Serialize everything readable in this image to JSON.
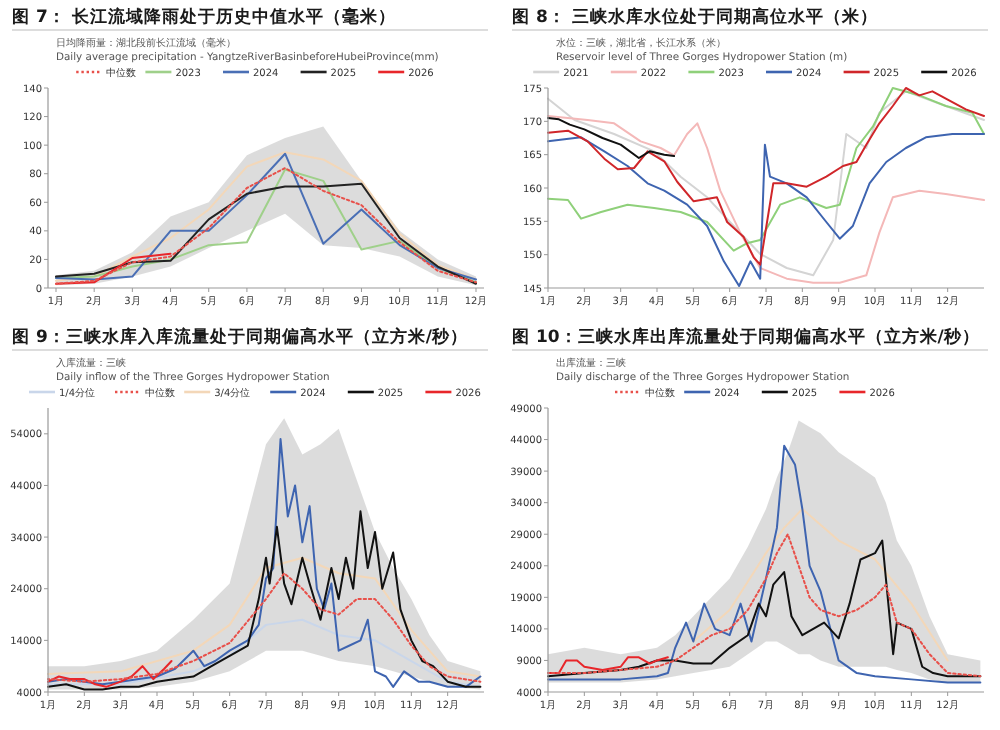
{
  "chart_data": [
    {
      "type": "line",
      "title": "图 7： 长江流域降雨处于历史中值水平（毫米）",
      "subtitle": "日均降雨量：湖北段前长江流域（毫米）\nDaily average precipitation - YangtzeRiverBasinbeforeHubeiProvince(mm)",
      "categories": [
        "1月",
        "2月",
        "3月",
        "4月",
        "5月",
        "6月",
        "7月",
        "8月",
        "9月",
        "10月",
        "11月",
        "12月"
      ],
      "ylim": [
        0,
        140
      ],
      "yticks": [
        0,
        20,
        40,
        60,
        80,
        100,
        120,
        140
      ],
      "legend": "top",
      "series": [
        {
          "name": "中位数",
          "color": "#e8504a",
          "line_style": "dotted",
          "values": [
            3,
            5,
            18,
            22,
            42,
            70,
            84,
            68,
            58,
            32,
            12,
            4
          ],
          "lower": [
            2,
            3,
            8,
            15,
            28,
            40,
            52,
            30,
            28,
            22,
            8,
            2
          ],
          "upper": [
            9,
            12,
            25,
            50,
            60,
            93,
            105,
            113,
            75,
            40,
            20,
            8
          ]
        },
        {
          "color": "#f3d7b8",
          "values": [
            5,
            8,
            22,
            35,
            55,
            85,
            95,
            90,
            75,
            38,
            16,
            6
          ]
        },
        {
          "name": "2023",
          "color": "#9fd08a",
          "values": [
            7,
            8,
            15,
            20,
            30,
            32,
            83,
            75,
            27,
            33,
            14,
            4
          ]
        },
        {
          "name": "2024",
          "color": "#4a6fb5",
          "values": [
            7,
            6,
            8,
            40,
            40,
            65,
            94,
            31,
            55,
            30,
            14,
            6
          ]
        },
        {
          "name": "2025",
          "color": "#222222",
          "values": [
            8,
            10,
            18,
            19,
            48,
            66,
            71,
            71,
            73,
            35,
            15,
            3
          ]
        },
        {
          "name": "2026",
          "color": "#e8262a",
          "values": [
            3,
            4,
            21,
            24,
            null,
            null,
            null,
            null,
            null,
            null,
            null,
            null
          ]
        }
      ]
    },
    {
      "type": "line",
      "title": "图 8： 三峡水库水位处于同期高位水平（米）",
      "subtitle": "水位：三峡，湖北省，长江水系（米）\nReservoir level of Three Gorges Hydropower Station (m)",
      "xlim": [
        1,
        13
      ],
      "xticks": [
        {
          "value": 1,
          "label": "1月"
        },
        {
          "value": 2,
          "label": "2月"
        },
        {
          "value": 3,
          "label": "3月"
        },
        {
          "value": 4,
          "label": "4月"
        },
        {
          "value": 5,
          "label": "5月"
        },
        {
          "value": 6,
          "label": "6月"
        },
        {
          "value": 7,
          "label": "7月"
        },
        {
          "value": 8,
          "label": "8月"
        },
        {
          "value": 9,
          "label": "9月"
        },
        {
          "value": 10,
          "label": "10月"
        },
        {
          "value": 11,
          "label": "11月"
        },
        {
          "value": 12,
          "label": "12月"
        }
      ],
      "ylim": [
        145,
        175
      ],
      "yticks": [
        145,
        150,
        155,
        160,
        165,
        170,
        175
      ],
      "legend": "top",
      "series": [
        {
          "name": "2021",
          "color": "#d4d4d4",
          "x": [
            1,
            1.73,
            2.82,
            3.92,
            4.65,
            5.38,
            6.11,
            6.84,
            7.57,
            8.3,
            8.85,
            9.21,
            9.76,
            10.12,
            10.85,
            11.95,
            13
          ],
          "values": [
            173.4,
            170.2,
            168.1,
            165.5,
            161.7,
            158.6,
            154.3,
            150.1,
            148,
            146.9,
            152.2,
            168.1,
            166,
            171.3,
            174.5,
            172.3,
            170.2
          ]
        },
        {
          "name": "2022",
          "color": "#f4b8b8",
          "x": [
            1,
            2.09,
            2.82,
            3.55,
            4.1,
            4.47,
            4.83,
            5.11,
            5.38,
            5.74,
            6.29,
            6.84,
            7.57,
            8.3,
            9.03,
            9.76,
            10.12,
            10.49,
            11.22,
            11.95,
            13
          ],
          "values": [
            170.8,
            170.2,
            169.7,
            167,
            166,
            164.9,
            168.1,
            169.7,
            166,
            159.6,
            153.3,
            148,
            146.4,
            145.8,
            145.8,
            146.9,
            153.3,
            158.6,
            159.6,
            159.1,
            158.2
          ]
        },
        {
          "name": "2023",
          "color": "#8fd07a",
          "x": [
            1,
            1.55,
            1.91,
            2.46,
            3.19,
            3.92,
            4.65,
            5.38,
            6.11,
            6.47,
            6.84,
            7.39,
            7.93,
            8.66,
            9.03,
            9.49,
            9.94,
            10.49,
            11.22,
            11.95,
            12.68,
            13
          ],
          "values": [
            158.4,
            158.2,
            155.4,
            156.4,
            157.5,
            157,
            156.4,
            154.9,
            150.6,
            151.7,
            152.2,
            157.5,
            158.6,
            157,
            157.5,
            166,
            169.2,
            175,
            173.9,
            172.3,
            171.3,
            168.1
          ]
        },
        {
          "name": "2024",
          "color": "#3e64b0",
          "x": [
            1,
            1.91,
            2.55,
            3.19,
            3.74,
            4.2,
            4.83,
            5.38,
            5.84,
            6.26,
            6.57,
            6.84,
            6.97,
            7.11,
            7.57,
            8.12,
            8.66,
            9.03,
            9.39,
            9.85,
            10.31,
            10.85,
            11.4,
            12.13,
            13
          ],
          "values": [
            167,
            167.6,
            165.5,
            163.3,
            160.7,
            159.6,
            157.5,
            154.3,
            149,
            145.3,
            149,
            146.4,
            166.5,
            161.7,
            160.7,
            158.6,
            154.9,
            152.4,
            154.3,
            160.7,
            163.9,
            166,
            167.6,
            168.1,
            168.1
          ]
        },
        {
          "name": "2025",
          "color": "#d0262a",
          "x": [
            1,
            1.55,
            2.09,
            2.55,
            2.92,
            3.37,
            3.74,
            4.2,
            4.56,
            5.01,
            5.65,
            5.93,
            6.38,
            6.66,
            6.84,
            7.2,
            7.57,
            8.12,
            8.66,
            9.12,
            9.49,
            9.76,
            10.12,
            10.49,
            10.85,
            11.22,
            11.58,
            11.95,
            12.5,
            13
          ],
          "values": [
            168.3,
            168.6,
            167,
            164.4,
            162.8,
            163,
            165.5,
            164,
            160.9,
            158,
            158.6,
            154.9,
            152.7,
            149.6,
            148.5,
            160.7,
            160.7,
            160.2,
            161.7,
            163.3,
            163.9,
            166.5,
            169.7,
            172.3,
            175,
            173.9,
            174.5,
            173.4,
            171.8,
            170.8
          ]
        },
        {
          "name": "2026",
          "color": "#111111",
          "x": [
            1,
            1.3,
            1.6,
            2,
            2.5,
            3,
            3.5,
            3.8,
            4.2,
            4.47
          ],
          "values": [
            170.5,
            170.3,
            169.5,
            168.8,
            167.5,
            166.5,
            164.5,
            165.5,
            165,
            164.8
          ]
        }
      ]
    },
    {
      "type": "line",
      "title": "图 9：三峡水库入库流量处于同期偏高水平（立方米/秒）",
      "subtitle": "入库流量：三峡\nDaily inflow of the Three Gorges Hydropower Station",
      "xlim": [
        1,
        13
      ],
      "xticks": [
        {
          "value": 1,
          "label": "1月"
        },
        {
          "value": 2,
          "label": "2月"
        },
        {
          "value": 3,
          "label": "3月"
        },
        {
          "value": 4,
          "label": "4月"
        },
        {
          "value": 5,
          "label": "5月"
        },
        {
          "value": 6,
          "label": "6月"
        },
        {
          "value": 7,
          "label": "7月"
        },
        {
          "value": 8,
          "label": "8月"
        },
        {
          "value": 9,
          "label": "9月"
        },
        {
          "value": 10,
          "label": "10月"
        },
        {
          "value": 11,
          "label": "11月"
        },
        {
          "value": 12,
          "label": "12月"
        }
      ],
      "ylim": [
        4000,
        59000
      ],
      "yticks": [
        4000,
        14000,
        24000,
        34000,
        44000,
        54000
      ],
      "legend": "top",
      "series": [
        {
          "name": "1/4分位",
          "color": "#c9d6ea",
          "x": [
            1,
            3,
            5,
            6,
            7,
            8,
            9,
            10,
            11,
            12,
            12.9
          ],
          "values": [
            5500,
            5500,
            8000,
            11000,
            17000,
            18000,
            15000,
            14000,
            10000,
            6000,
            5000
          ]
        },
        {
          "name": "中位数",
          "color": "#e8504a",
          "line_style": "dotted",
          "x": [
            1,
            2,
            3,
            4,
            5,
            6,
            7,
            7.5,
            8,
            8.5,
            9,
            9.5,
            10,
            10.5,
            11,
            11.5,
            12,
            12.9
          ],
          "values": [
            6500,
            6000,
            6500,
            7500,
            10000,
            13500,
            22000,
            27000,
            24000,
            20000,
            19000,
            22000,
            22000,
            18000,
            13000,
            9000,
            7000,
            6000
          ],
          "lower": [
            4500,
            4500,
            4500,
            5000,
            6000,
            8000,
            12000,
            12000,
            12000,
            11000,
            10000,
            9500,
            9000,
            8000,
            7000,
            6000,
            5000,
            4500
          ],
          "upper": [
            9000,
            9000,
            10000,
            12000,
            18000,
            25000,
            52000,
            57000,
            50000,
            52000,
            55000,
            45000,
            35000,
            28000,
            22000,
            15000,
            10000,
            8000
          ]
        },
        {
          "name": "3/4分位",
          "color": "#f3d7b8",
          "x": [
            1,
            3,
            5,
            6,
            7,
            8,
            9,
            10,
            11,
            12,
            12.9
          ],
          "values": [
            7500,
            8000,
            12000,
            17000,
            28000,
            30000,
            27000,
            26000,
            16000,
            8000,
            7000
          ]
        },
        {
          "name": "2024",
          "color": "#3e64b0",
          "x": [
            1,
            1.5,
            2,
            2.5,
            3,
            3.5,
            4,
            4.5,
            5,
            5.3,
            5.6,
            6,
            6.5,
            6.8,
            7,
            7.2,
            7.4,
            7.6,
            7.8,
            8,
            8.2,
            8.4,
            8.6,
            8.8,
            9,
            9.3,
            9.6,
            9.8,
            10,
            10.3,
            10.5,
            10.8,
            11.2,
            11.5,
            12,
            12.5,
            12.9
          ],
          "values": [
            6000,
            6500,
            6000,
            5500,
            6000,
            6500,
            7000,
            8500,
            12000,
            9000,
            10000,
            12000,
            14000,
            17000,
            26000,
            28000,
            53000,
            38000,
            44000,
            33000,
            40000,
            24000,
            20000,
            25000,
            12000,
            13000,
            14000,
            18000,
            8000,
            7000,
            5000,
            8000,
            6000,
            6000,
            5000,
            5000,
            7000
          ]
        },
        {
          "name": "2025",
          "color": "#111111",
          "x": [
            1,
            1.5,
            2,
            2.5,
            3,
            3.5,
            4,
            4.5,
            5,
            5.5,
            6,
            6.5,
            6.8,
            7,
            7.1,
            7.3,
            7.5,
            7.7,
            8,
            8.2,
            8.5,
            8.8,
            9,
            9.2,
            9.4,
            9.6,
            9.8,
            10,
            10.2,
            10.5,
            10.7,
            11,
            11.3,
            11.6,
            12,
            12.5,
            12.9
          ],
          "values": [
            5000,
            5500,
            4500,
            4500,
            5000,
            5000,
            6000,
            6500,
            7000,
            9000,
            11000,
            13000,
            22000,
            30000,
            25000,
            36000,
            25000,
            21000,
            30000,
            25000,
            18000,
            28000,
            22000,
            30000,
            24000,
            39000,
            28000,
            35000,
            24000,
            31000,
            20000,
            14000,
            10000,
            9000,
            6000,
            5000,
            5000
          ]
        },
        {
          "name": "2026",
          "color": "#e8262a",
          "x": [
            1,
            1.3,
            1.6,
            2,
            2.3,
            2.6,
            3,
            3.3,
            3.6,
            3.9,
            4.2,
            4.4
          ],
          "values": [
            6000,
            7000,
            6500,
            6500,
            5500,
            5000,
            6000,
            7000,
            9000,
            6500,
            8500,
            10000
          ]
        }
      ]
    },
    {
      "type": "line",
      "title": "图 10：三峡水库出库流量处于同期偏高水平（立方米/秒）",
      "subtitle": "出库流量：三峡\nDaily discharge of the Three Gorges Hydropower Station",
      "xlim": [
        1,
        13
      ],
      "xticks": [
        {
          "value": 1,
          "label": "1月"
        },
        {
          "value": 2,
          "label": "2月"
        },
        {
          "value": 3,
          "label": "3月"
        },
        {
          "value": 4,
          "label": "4月"
        },
        {
          "value": 5,
          "label": "5月"
        },
        {
          "value": 6,
          "label": "6月"
        },
        {
          "value": 7,
          "label": "7月"
        },
        {
          "value": 8,
          "label": "8月"
        },
        {
          "value": 9,
          "label": "9月"
        },
        {
          "value": 10,
          "label": "10月"
        },
        {
          "value": 11,
          "label": "11月"
        },
        {
          "value": 12,
          "label": "12月"
        }
      ],
      "ylim": [
        4000,
        49000
      ],
      "yticks": [
        4000,
        9000,
        14000,
        19000,
        24000,
        29000,
        34000,
        39000,
        44000,
        49000
      ],
      "legend": "top",
      "series": [
        {
          "name": "中位数",
          "color": "#e8504a",
          "line_style": "dotted",
          "x": [
            1,
            2,
            3,
            4,
            4.5,
            5,
            5.5,
            6,
            6.5,
            7,
            7.3,
            7.6,
            7.9,
            8.2,
            8.5,
            9,
            9.5,
            10,
            10.3,
            10.6,
            11,
            11.5,
            12,
            12.9
          ],
          "values": [
            7000,
            7000,
            7500,
            8000,
            9000,
            11000,
            13000,
            14000,
            17000,
            22000,
            26000,
            29000,
            24000,
            19000,
            17000,
            16000,
            17000,
            19000,
            21000,
            15000,
            14000,
            10000,
            7000,
            6500
          ],
          "lower": [
            5500,
            5500,
            5500,
            6000,
            6500,
            7000,
            7500,
            8000,
            10000,
            12000,
            12000,
            11000,
            10000,
            10000,
            9000,
            8000,
            8000,
            8000,
            8000,
            7500,
            7000,
            6000,
            5500,
            5500
          ],
          "upper": [
            10000,
            11000,
            10000,
            11000,
            13000,
            16000,
            19000,
            22000,
            27000,
            33000,
            38000,
            42000,
            47000,
            46000,
            45000,
            42000,
            40000,
            38000,
            34000,
            28000,
            24000,
            16000,
            10000,
            9000
          ]
        },
        {
          "color": "#f3d7b8",
          "x": [
            5,
            6,
            7,
            7.5,
            8,
            9,
            10,
            11,
            12
          ],
          "values": [
            12000,
            17000,
            26000,
            30000,
            33000,
            28000,
            25000,
            18000,
            9000
          ]
        },
        {
          "name": "2024",
          "color": "#3e64b0",
          "x": [
            1,
            2,
            3,
            4,
            4.3,
            4.5,
            4.8,
            5,
            5.3,
            5.6,
            6,
            6.3,
            6.6,
            7,
            7.3,
            7.5,
            7.8,
            8,
            8.2,
            8.5,
            9,
            9.5,
            10,
            11,
            12,
            12.9
          ],
          "values": [
            6000,
            6000,
            6000,
            6500,
            7000,
            11000,
            15000,
            12000,
            18000,
            14000,
            13000,
            18000,
            12000,
            22000,
            30000,
            43000,
            40000,
            33000,
            24000,
            20000,
            9000,
            7000,
            6500,
            6000,
            5500,
            5500
          ]
        },
        {
          "name": "2025",
          "color": "#111111",
          "x": [
            1,
            2,
            3,
            3.5,
            4,
            4.5,
            5,
            5.5,
            6,
            6.5,
            6.8,
            7,
            7.2,
            7.5,
            7.7,
            8,
            8.3,
            8.6,
            9,
            9.3,
            9.6,
            10,
            10.2,
            10.5,
            10.6,
            11,
            11.3,
            11.6,
            12,
            12.9
          ],
          "values": [
            6500,
            7000,
            7500,
            8000,
            9000,
            9000,
            8500,
            8500,
            11000,
            13000,
            18000,
            16000,
            21000,
            23000,
            16000,
            13000,
            14000,
            15000,
            12500,
            18000,
            25000,
            26000,
            28000,
            10000,
            15000,
            14000,
            8000,
            7000,
            6500,
            6500
          ]
        },
        {
          "name": "2026",
          "color": "#e8262a",
          "x": [
            1,
            1.3,
            1.5,
            1.8,
            2,
            2.5,
            3,
            3.2,
            3.5,
            3.8,
            4,
            4.3
          ],
          "values": [
            7000,
            7000,
            9000,
            9000,
            8000,
            7500,
            8000,
            9500,
            9500,
            8500,
            9000,
            9500
          ]
        }
      ]
    }
  ]
}
